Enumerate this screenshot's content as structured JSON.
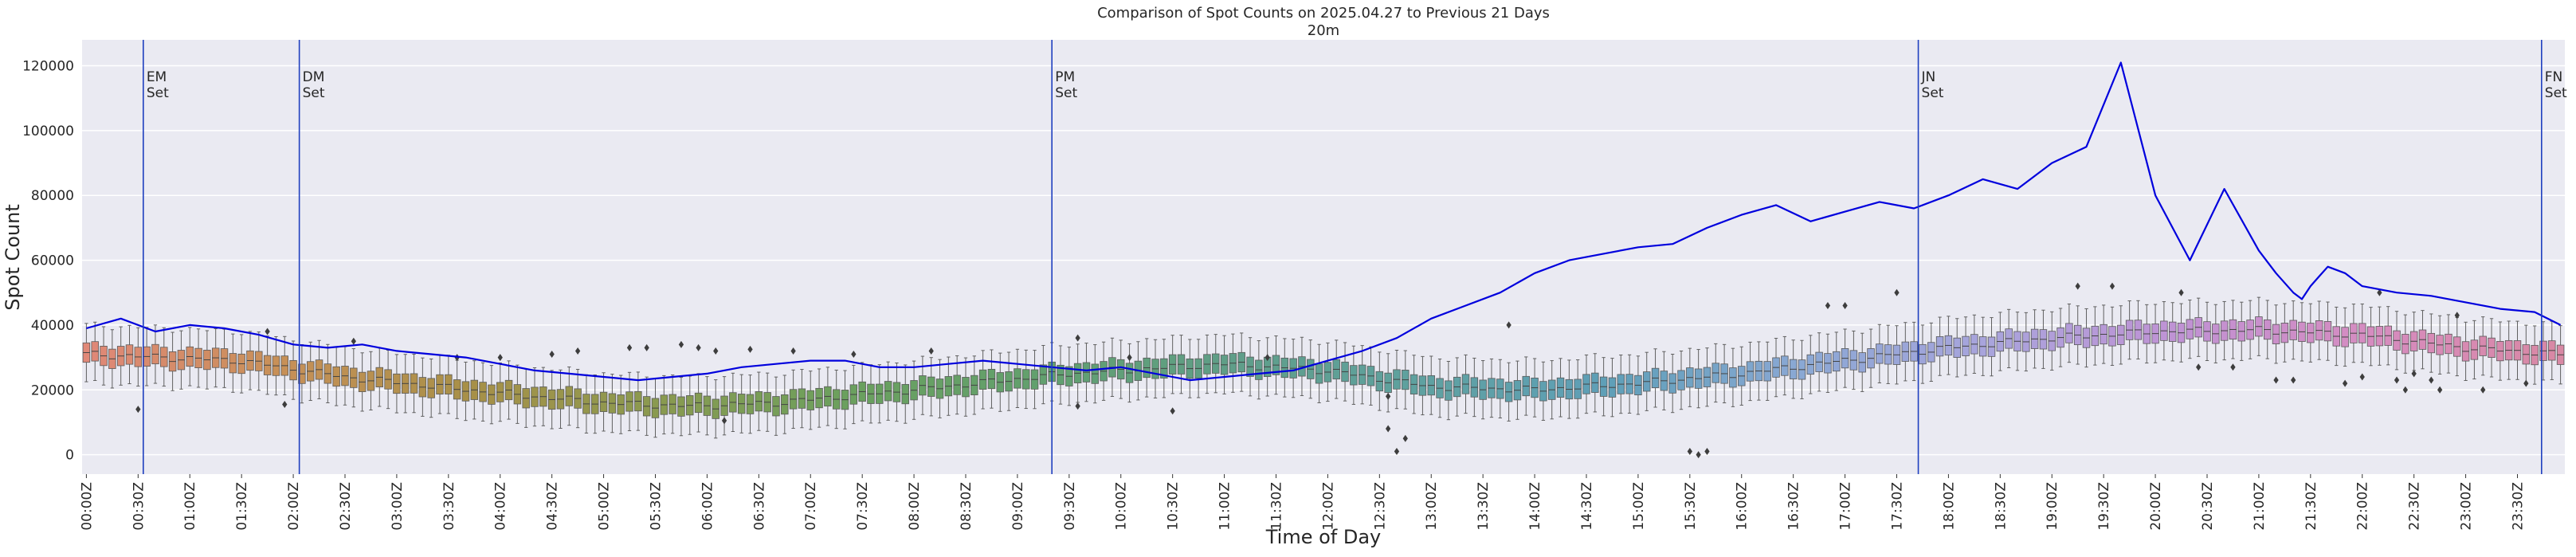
{
  "chart_data": {
    "type": "box",
    "title": "Comparison of Spot Counts on 2025.04.27 to Previous 21 Days",
    "subtitle": "20m",
    "xlabel": "Time of Day",
    "ylabel": "Spot Count",
    "ylim": [
      -6000,
      128000
    ],
    "y_ticks": [
      0,
      20000,
      40000,
      60000,
      80000,
      100000,
      120000
    ],
    "grid": true,
    "x_ticks": [
      "00:00Z",
      "00:30Z",
      "01:00Z",
      "01:30Z",
      "02:00Z",
      "02:30Z",
      "03:00Z",
      "03:30Z",
      "04:00Z",
      "04:30Z",
      "05:00Z",
      "05:30Z",
      "06:00Z",
      "06:30Z",
      "07:00Z",
      "07:30Z",
      "08:00Z",
      "08:30Z",
      "09:00Z",
      "09:30Z",
      "10:00Z",
      "10:30Z",
      "11:00Z",
      "11:30Z",
      "12:00Z",
      "12:30Z",
      "13:00Z",
      "13:30Z",
      "14:00Z",
      "14:30Z",
      "15:00Z",
      "15:30Z",
      "16:00Z",
      "16:30Z",
      "17:00Z",
      "17:30Z",
      "18:00Z",
      "18:30Z",
      "19:00Z",
      "19:30Z",
      "20:00Z",
      "20:30Z",
      "21:00Z",
      "21:30Z",
      "22:00Z",
      "22:30Z",
      "23:00Z",
      "23:30Z"
    ],
    "slot_minutes": 5,
    "slots": 288,
    "box_median_anchors": [
      [
        0,
        31000
      ],
      [
        18,
        29000
      ],
      [
        30,
        24000
      ],
      [
        48,
        19000
      ],
      [
        60,
        16000
      ],
      [
        70,
        15000
      ],
      [
        80,
        16000
      ],
      [
        96,
        20000
      ],
      [
        114,
        25000
      ],
      [
        132,
        28000
      ],
      [
        144,
        26000
      ],
      [
        156,
        21000
      ],
      [
        168,
        20000
      ],
      [
        180,
        22000
      ],
      [
        192,
        25000
      ],
      [
        204,
        29000
      ],
      [
        216,
        33000
      ],
      [
        228,
        36000
      ],
      [
        240,
        38000
      ],
      [
        252,
        38500
      ],
      [
        264,
        37000
      ],
      [
        276,
        33000
      ],
      [
        287,
        31000
      ]
    ],
    "box_iqr_half": 3000,
    "box_whisker_half": 9000,
    "outliers": [
      {
        "slot": 6,
        "value": 14000
      },
      {
        "slot": 21,
        "value": 38000
      },
      {
        "slot": 23,
        "value": 15500
      },
      {
        "slot": 31,
        "value": 35000
      },
      {
        "slot": 43,
        "value": 30000
      },
      {
        "slot": 48,
        "value": 30000
      },
      {
        "slot": 54,
        "value": 31000
      },
      {
        "slot": 57,
        "value": 32000
      },
      {
        "slot": 63,
        "value": 33000
      },
      {
        "slot": 65,
        "value": 33000
      },
      {
        "slot": 69,
        "value": 34000
      },
      {
        "slot": 71,
        "value": 33000
      },
      {
        "slot": 73,
        "value": 32000
      },
      {
        "slot": 74,
        "value": 10500
      },
      {
        "slot": 77,
        "value": 32500
      },
      {
        "slot": 82,
        "value": 32000
      },
      {
        "slot": 89,
        "value": 31000
      },
      {
        "slot": 98,
        "value": 32000
      },
      {
        "slot": 115,
        "value": 36000
      },
      {
        "slot": 115,
        "value": 15000
      },
      {
        "slot": 121,
        "value": 30000
      },
      {
        "slot": 126,
        "value": 13500
      },
      {
        "slot": 137,
        "value": 30000
      },
      {
        "slot": 151,
        "value": 8000
      },
      {
        "slot": 152,
        "value": 1000
      },
      {
        "slot": 153,
        "value": 5000
      },
      {
        "slot": 151,
        "value": 18000
      },
      {
        "slot": 165,
        "value": 40000
      },
      {
        "slot": 186,
        "value": 1000
      },
      {
        "slot": 187,
        "value": 0
      },
      {
        "slot": 188,
        "value": 1000
      },
      {
        "slot": 202,
        "value": 46000
      },
      {
        "slot": 204,
        "value": 46000
      },
      {
        "slot": 210,
        "value": 50000
      },
      {
        "slot": 231,
        "value": 52000
      },
      {
        "slot": 235,
        "value": 52000
      },
      {
        "slot": 243,
        "value": 50000
      },
      {
        "slot": 245,
        "value": 27000
      },
      {
        "slot": 249,
        "value": 27000
      },
      {
        "slot": 254,
        "value": 23000
      },
      {
        "slot": 256,
        "value": 23000
      },
      {
        "slot": 262,
        "value": 22000
      },
      {
        "slot": 264,
        "value": 24000
      },
      {
        "slot": 266,
        "value": 50000
      },
      {
        "slot": 268,
        "value": 23000
      },
      {
        "slot": 269,
        "value": 20000
      },
      {
        "slot": 270,
        "value": 25000
      },
      {
        "slot": 272,
        "value": 23000
      },
      {
        "slot": 273,
        "value": 20000
      },
      {
        "slot": 275,
        "value": 43000
      },
      {
        "slot": 278,
        "value": 20000
      },
      {
        "slot": 283,
        "value": 22000
      }
    ],
    "series": [
      {
        "color": "#0000dd",
        "x_slots": [
          0,
          4,
          8,
          12,
          16,
          20,
          24,
          28,
          32,
          36,
          40,
          44,
          48,
          52,
          56,
          60,
          64,
          68,
          72,
          76,
          80,
          84,
          88,
          92,
          96,
          100,
          104,
          108,
          112,
          116,
          120,
          124,
          128,
          132,
          136,
          140,
          144,
          148,
          152,
          156,
          160,
          164,
          168,
          172,
          176,
          180,
          184,
          188,
          192,
          196,
          200,
          204,
          208,
          212,
          216,
          220,
          224,
          228,
          232,
          236,
          240,
          244,
          248,
          252,
          254,
          256,
          257,
          258,
          259,
          260,
          262,
          264,
          268,
          272,
          276,
          280,
          284,
          287
        ],
        "values": [
          39000,
          42000,
          38000,
          40000,
          39000,
          37000,
          34000,
          33000,
          34000,
          32000,
          31000,
          30000,
          28000,
          26000,
          25000,
          24000,
          23000,
          24000,
          25000,
          27000,
          28000,
          29000,
          29000,
          27000,
          27000,
          28000,
          29000,
          28000,
          27000,
          26000,
          27000,
          25000,
          23000,
          24000,
          25000,
          26000,
          29000,
          32000,
          36000,
          42000,
          46000,
          50000,
          56000,
          60000,
          62000,
          64000,
          65000,
          70000,
          74000,
          77000,
          72000,
          75000,
          78000,
          76000,
          80000,
          85000,
          82000,
          90000,
          95000,
          121000,
          80000,
          60000,
          82000,
          63000,
          56000,
          50000,
          48000,
          52000,
          55000,
          58000,
          56000,
          52000,
          50000,
          49000,
          47000,
          45000,
          44000,
          40000
        ]
      }
    ],
    "vlines": [
      {
        "label": "EM\nSet",
        "x_slot": 7.1,
        "color": "#1f3fbf"
      },
      {
        "label": "DM\nSet",
        "x_slot": 25.2,
        "color": "#1f3fbf"
      },
      {
        "label": "PM\nSet",
        "x_slot": 112.5,
        "color": "#1f3fbf"
      },
      {
        "label": "JN\nSet",
        "x_slot": 213.0,
        "color": "#1f3fbf"
      },
      {
        "label": "FN\nSet",
        "x_slot": 285.3,
        "color": "#1f3fbf"
      }
    ],
    "palette_anchors": [
      "#e08878",
      "#c89058",
      "#a89048",
      "#8a9a50",
      "#6ba05e",
      "#62a06e",
      "#5f9e88",
      "#5fa1a0",
      "#5f9fb8",
      "#8aa8d4",
      "#a9a4dc",
      "#c092d4",
      "#d68cc0",
      "#d888a4"
    ]
  }
}
